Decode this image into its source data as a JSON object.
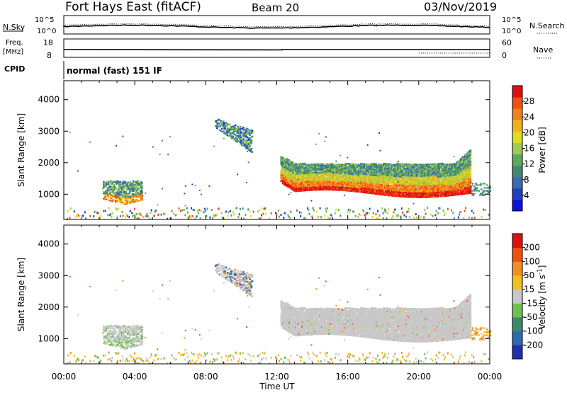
{
  "header": {
    "title": "Fort Hays East (fitACF)",
    "beam": "Beam 20",
    "date": "03/Nov/2019"
  },
  "top_panels": {
    "nsky_label": "N.Sky",
    "nsearch_label": "N.Search",
    "noise_ticks": [
      "10^5",
      "10^0"
    ],
    "freq_label": "Freq.",
    "freq_unit": "[MHz]",
    "freq_ticks": [
      "18",
      "8"
    ],
    "nave_label": "Nave",
    "nave_ticks": [
      "60",
      "0"
    ],
    "cpid_label": "CPID",
    "cpid_text": "normal (fast) 151 IF"
  },
  "chart_data": [
    {
      "type": "heatmap",
      "name": "power",
      "ylabel": "Slant Range [km]",
      "xlabel": "",
      "ylim": [
        200,
        4600
      ],
      "y_ticks": [
        "4000",
        "3000",
        "2000",
        "1000"
      ],
      "x_hours": [
        0,
        4,
        8,
        12,
        16,
        20,
        24
      ],
      "colorbar": {
        "label": "Power [dB]",
        "ticks": [
          "28",
          "24",
          "20",
          "16",
          "12",
          "8",
          "4"
        ],
        "colors": [
          "#1010e0",
          "#2040c0",
          "#3a6ab0",
          "#3f8a70",
          "#60a860",
          "#9ccc50",
          "#e0dc20",
          "#f0b020",
          "#f08020",
          "#f05010",
          "#e01010"
        ]
      }
    },
    {
      "type": "heatmap",
      "name": "velocity",
      "ylabel": "Slant Range [km]",
      "xlabel": "Time UT",
      "ylim": [
        200,
        4600
      ],
      "y_ticks": [
        "4000",
        "3000",
        "2000",
        "1000"
      ],
      "x_hours": [
        0,
        4,
        8,
        12,
        16,
        20,
        24
      ],
      "x_tick_labels": [
        "00:00",
        "04:00",
        "08:00",
        "12:00",
        "16:00",
        "20:00",
        "00:00"
      ],
      "colorbar": {
        "label": "Velocity [m s^-1]",
        "ticks": [
          "200",
          "100",
          "50",
          "15",
          "-15",
          "-50",
          "-100",
          "-200"
        ],
        "colors": [
          "#2030b0",
          "#2f6ab0",
          "#3a8a70",
          "#70c050",
          "#c8c8c8",
          "#f0c020",
          "#f09020",
          "#f05010",
          "#e01010"
        ]
      }
    }
  ]
}
